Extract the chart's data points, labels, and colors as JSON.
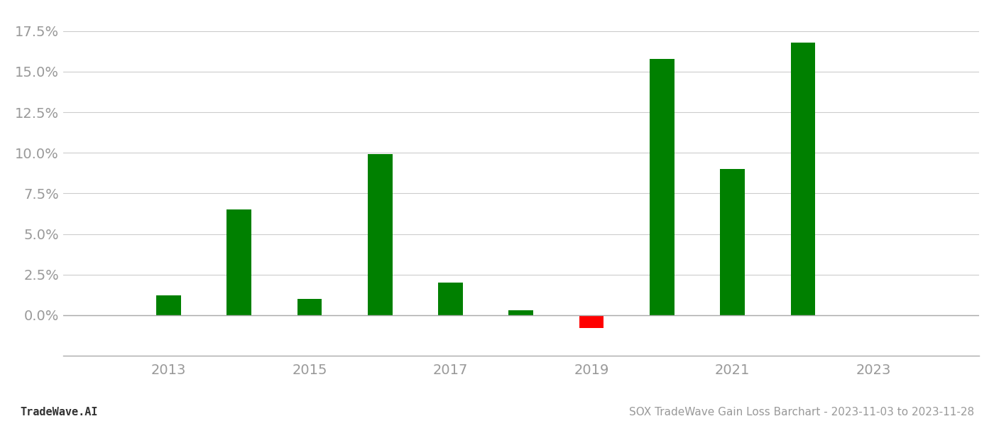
{
  "years": [
    2013,
    2014,
    2015,
    2016,
    2017,
    2018,
    2019,
    2020,
    2021,
    2022
  ],
  "values": [
    0.012,
    0.065,
    0.01,
    0.099,
    0.02,
    0.003,
    -0.008,
    0.158,
    0.09,
    0.168
  ],
  "colors": [
    "#008000",
    "#008000",
    "#008000",
    "#008000",
    "#008000",
    "#008000",
    "#ff0000",
    "#008000",
    "#008000",
    "#008000"
  ],
  "title": "SOX TradeWave Gain Loss Barchart - 2023-11-03 to 2023-11-28",
  "footer_left": "TradeWave.AI",
  "ylim": [
    -0.025,
    0.185
  ],
  "yticks": [
    0.0,
    0.025,
    0.05,
    0.075,
    0.1,
    0.125,
    0.15,
    0.175
  ],
  "background_color": "#ffffff",
  "grid_color": "#cccccc",
  "bar_width": 0.35,
  "title_fontsize": 11,
  "footer_fontsize": 11,
  "tick_fontsize": 14,
  "tick_color": "#999999",
  "xlim": [
    2011.5,
    2024.5
  ]
}
